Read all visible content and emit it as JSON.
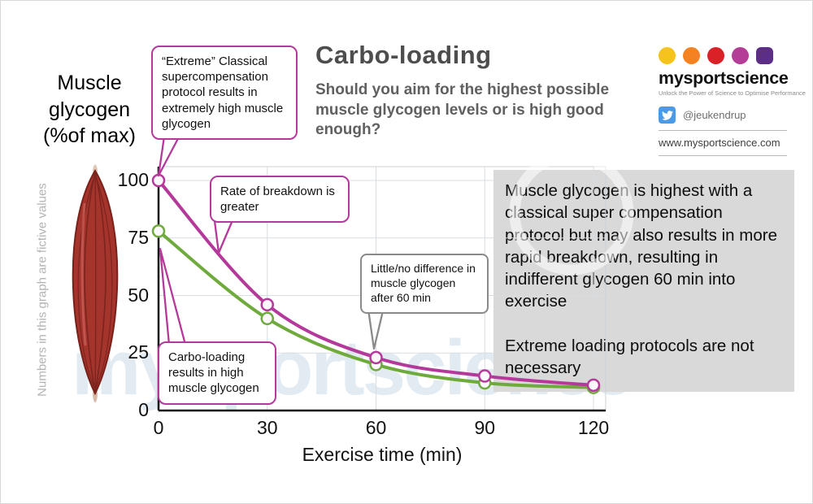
{
  "colors": {
    "magenta": "#b5399b",
    "green": "#6faa3c",
    "callout_gray": "#8a8a8a",
    "grid": "#d8dde2",
    "summary_bg": "#d9d9d9",
    "watermark": "#ccdce8",
    "twitter_blue": "#4a9ae8"
  },
  "header": {
    "title": "Carbo-loading",
    "subtitle": "Should you aim for the highest possible muscle glycogen levels or is high good enough?"
  },
  "y_axis_title": "Muscle\nglycogen\n(%of max)",
  "side_note": "Numbers in this graph are fictive values",
  "callouts": {
    "extreme": "“Extreme” Classical supercompensation protocol results in extremely high muscle glycogen",
    "breakdown": "Rate of breakdown is greater",
    "carbo": "Carbo-loading results in high muscle glycogen",
    "little": "Little/no difference in muscle glycogen after 60 min"
  },
  "summary": {
    "p1": "Muscle glycogen is highest with a classical super compensation protocol but may also results in more rapid breakdown, resulting in indifferent glycogen 60 min into exercise",
    "p2": "Extreme loading protocols are not necessary"
  },
  "brand": {
    "name": "mysportscience",
    "tagline": "Unlock the Power of Science to Optimise Performance",
    "twitter": "@jeukendrup",
    "website": "www.mysportscience.com",
    "dot_colors": [
      "#f6c31c",
      "#f58220",
      "#da2128",
      "#b43d97",
      "#5c2e86"
    ]
  },
  "watermark_text": "mysportscience",
  "chart_data": {
    "type": "line",
    "x": [
      0,
      30,
      60,
      90,
      120
    ],
    "series": [
      {
        "name": "Classical supercompensation (extreme loading)",
        "color": "#b5399b",
        "values": [
          100,
          46,
          23,
          15,
          11
        ]
      },
      {
        "name": "Carbo-loading",
        "color": "#6faa3c",
        "values": [
          78,
          40,
          20,
          12,
          10
        ]
      }
    ],
    "title": "Carbo-loading",
    "xlabel": "Exercise time (min)",
    "ylabel": "Muscle glycogen (%of max)",
    "xticks": [
      0,
      30,
      60,
      90,
      120
    ],
    "yticks": [
      0,
      25,
      50,
      75,
      100
    ],
    "xlim": [
      0,
      120
    ],
    "ylim": [
      0,
      100
    ],
    "grid": true,
    "legend": "none"
  }
}
